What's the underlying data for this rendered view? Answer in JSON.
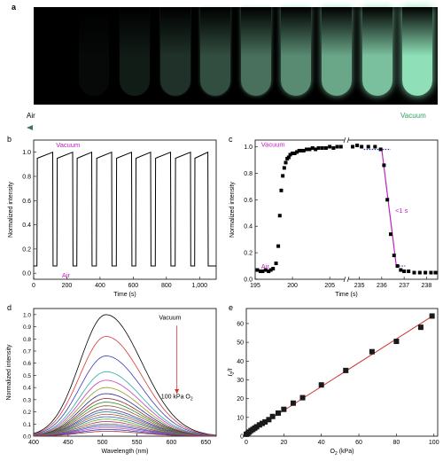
{
  "panel_a": {
    "letter": "a",
    "tube_count": 10,
    "tube_intensity": [
      0.0,
      0.04,
      0.12,
      0.22,
      0.35,
      0.5,
      0.62,
      0.74,
      0.86,
      1.0
    ],
    "glow_color": "#8fe0b8",
    "air_label": "Air",
    "vacuum_label": "Vacuum",
    "arrow_color_air": "#3a7a5a",
    "arrow_color_vacuum": "#2ea35f"
  },
  "chart_data": [
    {
      "id": "b",
      "letter": "b",
      "type": "line",
      "xlabel": "Time (s)",
      "ylabel": "Normalized intensity",
      "xlim": [
        0,
        1100
      ],
      "ylim": [
        -0.05,
        1.1
      ],
      "xticks": [
        0,
        200,
        400,
        600,
        800,
        1000
      ],
      "yticks": [
        0.0,
        0.2,
        0.4,
        0.6,
        0.8,
        1.0
      ],
      "xtick_labels": [
        "0",
        "200",
        "400",
        "600",
        "800",
        "1,000"
      ],
      "ytick_labels": [
        "0.0",
        "0.2",
        "0.4",
        "0.6",
        "0.8",
        "1.0"
      ],
      "annotations": [
        {
          "text": "Vacuum",
          "x": 135,
          "y": 1.04,
          "color": "#c020c0"
        },
        {
          "text": "Air",
          "x": 170,
          "y": -0.035,
          "color": "#c020c0"
        }
      ],
      "series": [
        {
          "color": "#000000",
          "x": [
            0,
            20,
            22,
            115,
            117,
            140,
            142,
            235,
            237,
            260,
            262,
            350,
            352,
            378,
            380,
            470,
            472,
            498,
            500,
            590,
            592,
            615,
            617,
            705,
            707,
            733,
            735,
            825,
            827,
            853,
            855,
            945,
            947,
            970,
            972,
            1050,
            1052,
            1100
          ],
          "y": [
            0.06,
            0.06,
            0.95,
            1.0,
            0.06,
            0.06,
            0.95,
            1.0,
            0.06,
            0.06,
            0.95,
            1.0,
            0.06,
            0.06,
            0.95,
            1.0,
            0.06,
            0.06,
            0.95,
            1.0,
            0.06,
            0.06,
            0.95,
            1.0,
            0.06,
            0.06,
            0.95,
            1.0,
            0.06,
            0.06,
            0.95,
            1.0,
            0.06,
            0.06,
            0.95,
            1.0,
            0.06,
            0.06
          ]
        }
      ]
    },
    {
      "id": "c",
      "letter": "c",
      "type": "scatter",
      "xlabel": "Time (s)",
      "ylabel": "Normalized intensity",
      "ylim": [
        0,
        1.05
      ],
      "yticks": [
        0.0,
        0.2,
        0.4,
        0.6,
        0.8,
        1.0
      ],
      "ytick_labels": [
        "0.0",
        "0.2",
        "0.4",
        "0.6",
        "0.8",
        "1.0"
      ],
      "segments": [
        {
          "xlim": [
            195,
            207
          ],
          "ticks": [
            195,
            200,
            205
          ],
          "labels": [
            "195",
            "200",
            "205"
          ]
        },
        {
          "xlim": [
            234.5,
            238.5
          ],
          "ticks": [
            235,
            236,
            237,
            238
          ],
          "labels": [
            "235",
            "236",
            "237",
            "238"
          ]
        }
      ],
      "annotations": [
        {
          "text": "Vacuum",
          "x": 195.8,
          "y": 1.0,
          "color": "#c020c0"
        },
        {
          "text": "Air",
          "x": 195.8,
          "y": 0.08,
          "color": "#c020c0"
        },
        {
          "text": "<1 s",
          "x": 236.6,
          "y": 0.5,
          "color": "#c020c0"
        }
      ],
      "series": [
        {
          "color": "#000000",
          "x": [
            195.3,
            195.7,
            196.0,
            196.4,
            196.8,
            197.1,
            197.4,
            197.8,
            198.1,
            198.3,
            198.5,
            198.7,
            198.9,
            199.1,
            199.3,
            199.5,
            199.7,
            200.0,
            200.3,
            200.6,
            200.9,
            201.2,
            201.5,
            201.9,
            202.3,
            202.7,
            203.1,
            203.5,
            204.0,
            204.5,
            205.0,
            205.5,
            206.0,
            206.5
          ],
          "y": [
            0.07,
            0.06,
            0.06,
            0.07,
            0.06,
            0.07,
            0.08,
            0.12,
            0.25,
            0.48,
            0.67,
            0.78,
            0.84,
            0.88,
            0.91,
            0.92,
            0.94,
            0.95,
            0.95,
            0.96,
            0.97,
            0.97,
            0.97,
            0.98,
            0.98,
            0.99,
            0.98,
            0.99,
            0.99,
            0.99,
            1.0,
            0.99,
            1.0,
            1.0
          ]
        },
        {
          "color": "#000000",
          "x": [
            234.7,
            234.9,
            235.1,
            235.4,
            235.7,
            235.95,
            236.1,
            236.25,
            236.4,
            236.55,
            236.7,
            236.85,
            237.0,
            237.2,
            237.45,
            237.7,
            237.95,
            238.2,
            238.4
          ],
          "y": [
            1.0,
            1.01,
            1.0,
            1.0,
            1.0,
            0.98,
            0.86,
            0.6,
            0.34,
            0.18,
            0.1,
            0.07,
            0.06,
            0.06,
            0.05,
            0.05,
            0.05,
            0.05,
            0.05
          ]
        }
      ],
      "guides": [
        {
          "color": "#3030c0",
          "style": "dotted",
          "x": [
            235.2,
            236.4
          ],
          "y": [
            0.98,
            0.98
          ]
        },
        {
          "color": "#3030c0",
          "style": "dotted",
          "x": [
            236.65,
            237.05
          ],
          "y": [
            0.1,
            0.1
          ]
        },
        {
          "color": "#c020c0",
          "style": "solid",
          "x": [
            236.0,
            236.65
          ],
          "y": [
            0.98,
            0.1
          ]
        }
      ]
    },
    {
      "id": "d",
      "letter": "d",
      "type": "line",
      "xlabel": "Wavelength (nm)",
      "ylabel": "Normalized intensity",
      "xlim": [
        400,
        665
      ],
      "ylim": [
        0,
        1.05
      ],
      "xticks": [
        400,
        450,
        500,
        550,
        600,
        650
      ],
      "yticks": [
        0.0,
        0.1,
        0.2,
        0.3,
        0.4,
        0.5,
        0.6,
        0.7,
        0.8,
        0.9,
        1.0
      ],
      "xtick_labels": [
        "400",
        "450",
        "500",
        "550",
        "600",
        "650"
      ],
      "ytick_labels": [
        "0.0",
        "0.1",
        "0.2",
        "0.3",
        "0.4",
        "0.5",
        "0.6",
        "0.7",
        "0.8",
        "0.9",
        "1.0"
      ],
      "peak_nm": 505,
      "annotations": [
        {
          "text": "Vacuum",
          "x": 598,
          "y": 0.96,
          "color": "#000000"
        },
        {
          "text": "100 kPa O",
          "sub": "2",
          "x": 585,
          "y": 0.31,
          "color": "#000000"
        }
      ],
      "arrow": {
        "x": 608,
        "y_from": 0.91,
        "y_to": 0.35,
        "color": "#d03030"
      },
      "series": [
        {
          "peak": 1.0,
          "color": "#000000"
        },
        {
          "peak": 0.82,
          "color": "#d63b3b"
        },
        {
          "peak": 0.66,
          "color": "#3a3ab5"
        },
        {
          "peak": 0.53,
          "color": "#2aa8a8"
        },
        {
          "peak": 0.46,
          "color": "#c040c0"
        },
        {
          "peak": 0.4,
          "color": "#9a9a20"
        },
        {
          "peak": 0.35,
          "color": "#2a2a8a"
        },
        {
          "peak": 0.31,
          "color": "#8a2a2a"
        },
        {
          "peak": 0.28,
          "color": "#2a8a2a"
        },
        {
          "peak": 0.25,
          "color": "#8a5a2a"
        },
        {
          "peak": 0.22,
          "color": "#5a2a8a"
        },
        {
          "peak": 0.2,
          "color": "#2a7a9a"
        },
        {
          "peak": 0.18,
          "color": "#b06030"
        },
        {
          "peak": 0.16,
          "color": "#3060b0"
        },
        {
          "peak": 0.14,
          "color": "#60b030"
        },
        {
          "peak": 0.12,
          "color": "#b03060"
        },
        {
          "peak": 0.1,
          "color": "#606060"
        },
        {
          "peak": 0.085,
          "color": "#3050d0"
        },
        {
          "peak": 0.07,
          "color": "#d050a0"
        },
        {
          "peak": 0.055,
          "color": "#3030c0"
        },
        {
          "peak": 0.04,
          "color": "#a03030"
        }
      ]
    },
    {
      "id": "e",
      "letter": "e",
      "type": "scatter",
      "xlabel": "O",
      "xlabel_sub": "2",
      "xlabel_tail": " (kPa)",
      "ylabel": "I",
      "ylabel_sub": "0",
      "ylabel_tail": "/I",
      "xlim": [
        0,
        102
      ],
      "ylim": [
        0,
        68
      ],
      "xticks": [
        0,
        20,
        40,
        60,
        80,
        100
      ],
      "yticks": [
        0,
        10,
        20,
        30,
        40,
        50,
        60
      ],
      "xtick_labels": [
        "0",
        "20",
        "40",
        "60",
        "80",
        "100"
      ],
      "ytick_labels": [
        "0",
        "10",
        "20",
        "30",
        "40",
        "50",
        "60"
      ],
      "fit": {
        "x": [
          0,
          100
        ],
        "y": [
          1,
          64.5
        ],
        "color": "#d03030"
      },
      "series": [
        {
          "color": "#1a1a1a",
          "x": [
            0,
            0.8,
            1.6,
            2.5,
            3.5,
            4.5,
            5.5,
            7,
            8.5,
            10,
            12,
            14,
            17,
            20,
            25,
            30,
            40,
            53,
            67,
            80,
            93,
            99
          ],
          "y": [
            1,
            1.5,
            2.2,
            3,
            3.6,
            4.3,
            5,
            6,
            6.8,
            7.6,
            8.8,
            10.5,
            12.3,
            14.3,
            17.6,
            20.5,
            27.3,
            35,
            45,
            50.5,
            58,
            64
          ]
        }
      ]
    }
  ]
}
